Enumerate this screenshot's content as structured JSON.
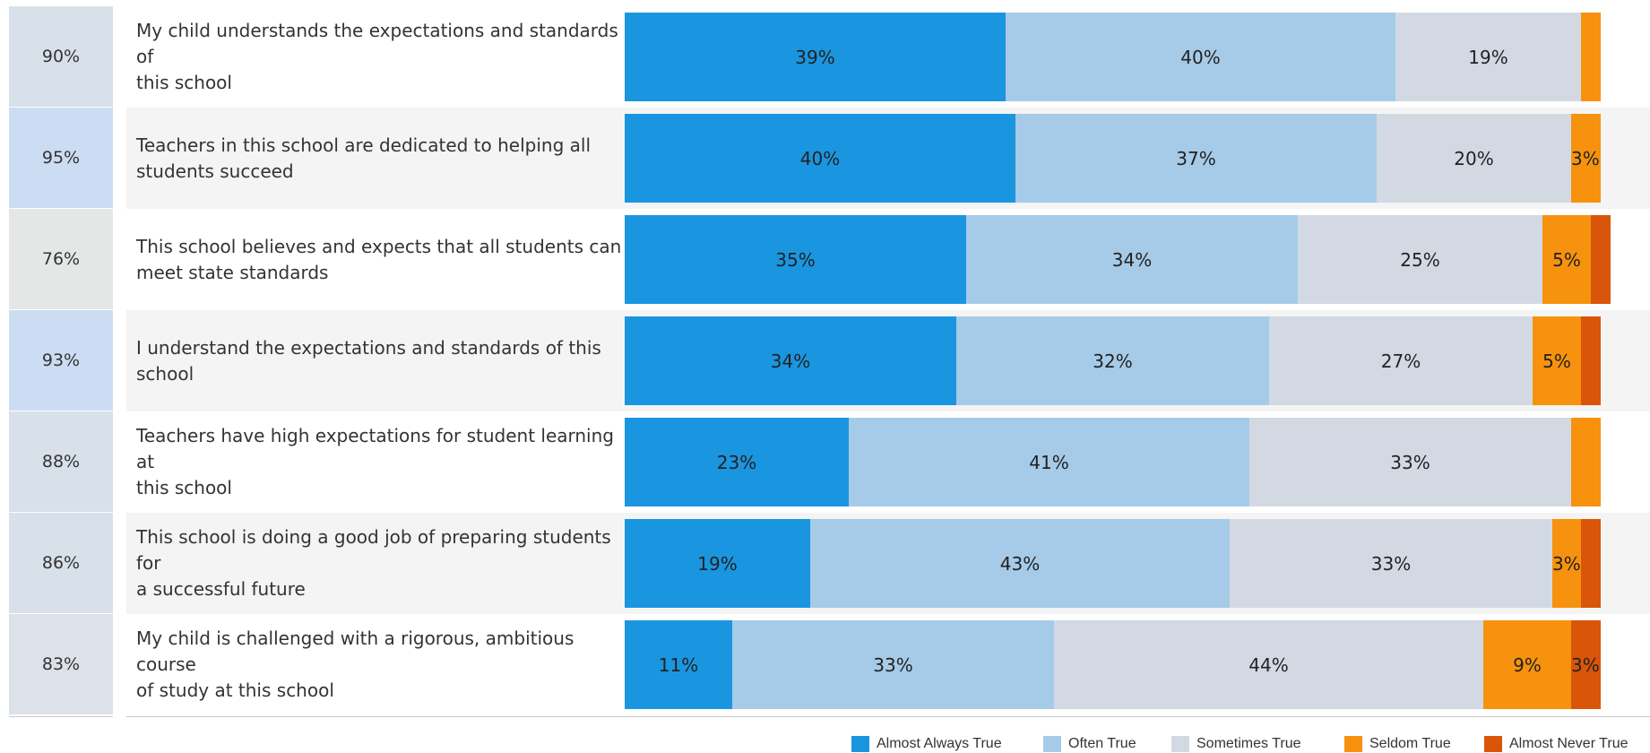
{
  "chart_data": {
    "type": "bar",
    "orientation": "horizontal",
    "stacked": true,
    "categories": [
      "My child understands the expectations and standards of this school",
      "Teachers in this school are dedicated to helping all students succeed",
      "This school believes and expects that all students can meet state standards",
      "I understand the expectations and standards of this school",
      "Teachers have high expectations for student learning at this school",
      "This school is doing a good job of preparing students for a successful future",
      "My child is challenged with a rigorous, ambitious course of study at this school"
    ],
    "category_lines": [
      [
        "My child understands the expectations and standards of",
        "this school"
      ],
      [
        "Teachers in this school are dedicated to helping all",
        "students succeed"
      ],
      [
        "This school believes and expects that all students can",
        "meet state standards"
      ],
      [
        "I understand the expectations and standards of this",
        "school"
      ],
      [
        "Teachers have high expectations for student learning at",
        "this school"
      ],
      [
        "This school is doing a good job of preparing students for",
        "a successful future"
      ],
      [
        "My child is challenged with a rigorous, ambitious course",
        "of study at this school"
      ]
    ],
    "favorable_labels": [
      "90%",
      "95%",
      "76%",
      "93%",
      "88%",
      "86%",
      "83%"
    ],
    "series": [
      {
        "name": "Almost Always True",
        "color": "#1a96e0",
        "values": [
          39,
          40,
          35,
          34,
          23,
          19,
          11
        ]
      },
      {
        "name": "Often True",
        "color": "#a6cbe8",
        "values": [
          40,
          37,
          34,
          32,
          41,
          43,
          33
        ]
      },
      {
        "name": "Sometimes True",
        "color": "#d3d9e3",
        "values": [
          19,
          20,
          25,
          27,
          33,
          33,
          44
        ]
      },
      {
        "name": "Seldom True",
        "color": "#f7920e",
        "values": [
          2,
          3,
          5,
          5,
          3,
          3,
          9
        ]
      },
      {
        "name": "Almost Never True",
        "color": "#d95509",
        "values": [
          0,
          0,
          2,
          2,
          0,
          2,
          3
        ]
      }
    ],
    "data_labels": [
      [
        "39%",
        "40%",
        "19%",
        "",
        ""
      ],
      [
        "40%",
        "37%",
        "20%",
        "3%",
        ""
      ],
      [
        "35%",
        "34%",
        "25%",
        "5%",
        ""
      ],
      [
        "34%",
        "32%",
        "27%",
        "5%",
        ""
      ],
      [
        "23%",
        "41%",
        "33%",
        "",
        ""
      ],
      [
        "19%",
        "43%",
        "33%",
        "3%",
        ""
      ],
      [
        "11%",
        "33%",
        "44%",
        "9%",
        "3%"
      ]
    ],
    "favorable_colors": [
      "#d8e0ea",
      "#ccdcf2",
      "#e5e6e6",
      "#ccdcf2",
      "#d8e0ea",
      "#d8e0ea",
      "#dde2ea"
    ],
    "row_background_alt": "#f4f4f4",
    "xlim": [
      0,
      100
    ],
    "legend_position": "bottom-right",
    "grid": false
  }
}
